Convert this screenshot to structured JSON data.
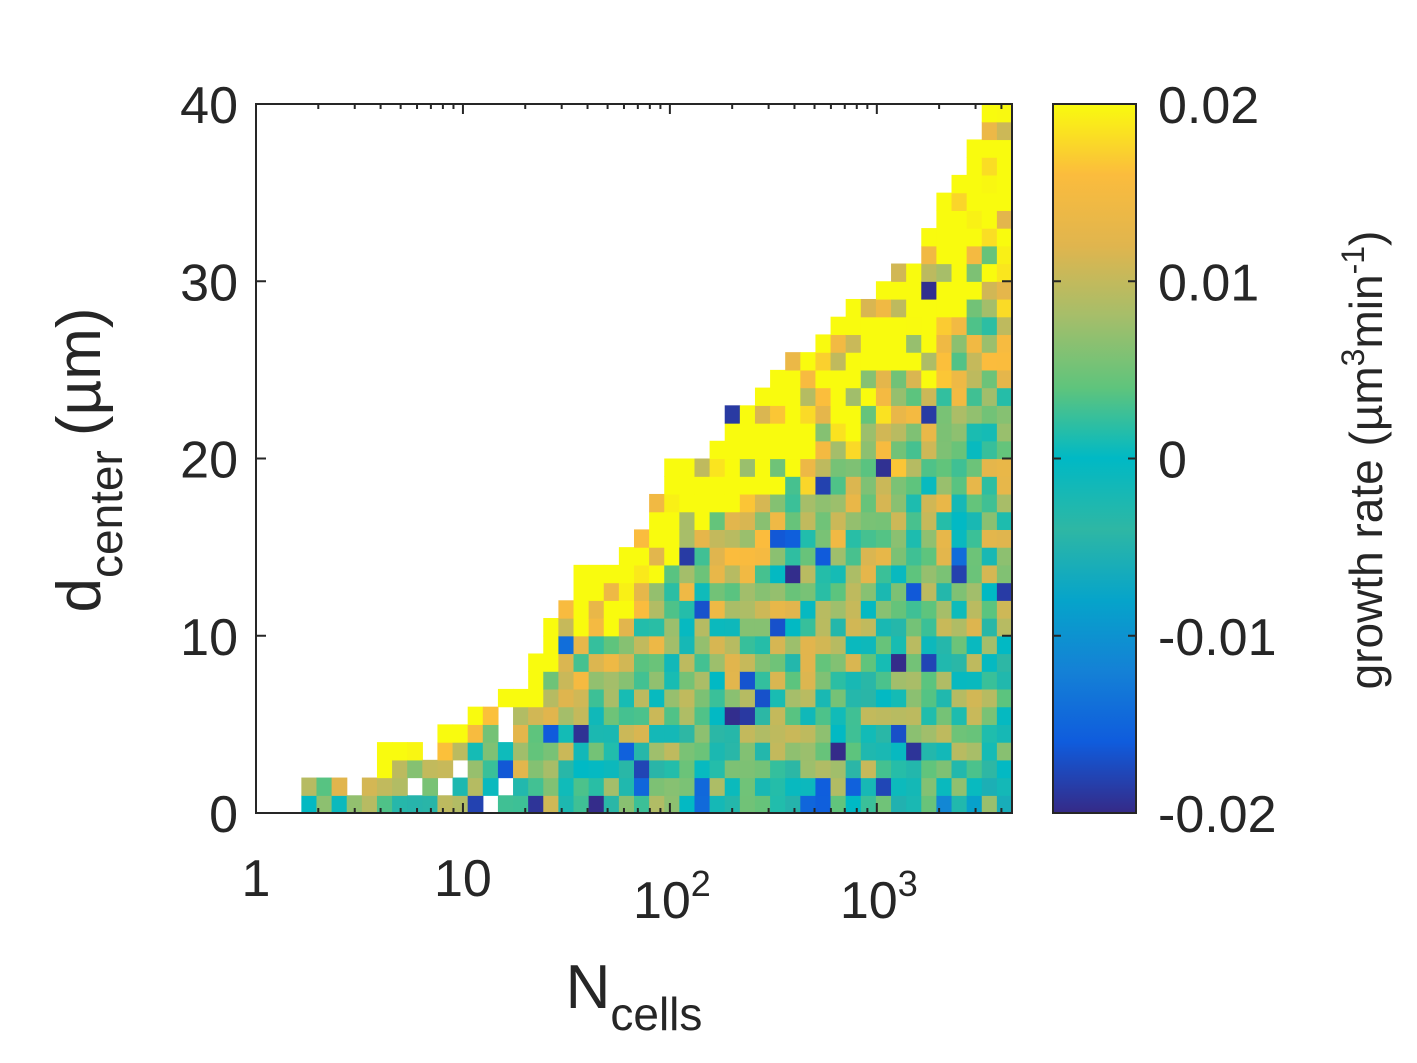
{
  "chart_data": {
    "type": "heatmap",
    "title": "",
    "xlabel": {
      "main": "N",
      "sub": "cells"
    },
    "ylabel": {
      "main": "d",
      "sub": "center",
      "unit": "(µm)"
    },
    "x_scale": "log",
    "xlim": [
      1,
      4500
    ],
    "ylim": [
      0,
      40
    ],
    "x_ticks": [
      {
        "value": 1,
        "base": "1",
        "exp": ""
      },
      {
        "value": 10,
        "base": "10",
        "exp": ""
      },
      {
        "value": 100,
        "base": "10",
        "exp": "2"
      },
      {
        "value": 1000,
        "base": "10",
        "exp": "3"
      }
    ],
    "y_ticks": [
      {
        "value": 0,
        "label": "0"
      },
      {
        "value": 10,
        "label": "10"
      },
      {
        "value": 20,
        "label": "20"
      },
      {
        "value": 30,
        "label": "30"
      },
      {
        "value": 40,
        "label": "40"
      }
    ],
    "colorbar": {
      "label": "growth rate (µm",
      "label_sup1": "3",
      "label_mid": "min",
      "label_sup2": "-1",
      "label_end": ")",
      "clim": [
        -0.02,
        0.02
      ],
      "ticks": [
        {
          "value": 0.02,
          "label": "0.02"
        },
        {
          "value": 0.01,
          "label": "0.01"
        },
        {
          "value": 0,
          "label": "0"
        },
        {
          "value": -0.01,
          "label": "-0.01"
        },
        {
          "value": -0.02,
          "label": "-0.02"
        }
      ],
      "colormap": "parula"
    },
    "grid": false,
    "bins": {
      "n_log_x_bins": 50,
      "n_y_bins": 40,
      "bin_height_um": 1
    },
    "envelope_max_d_um": [
      [
        1.7,
        3
      ],
      [
        3,
        3
      ],
      [
        7,
        3.5
      ],
      [
        10,
        5
      ],
      [
        20,
        7
      ],
      [
        35,
        13
      ],
      [
        60,
        14
      ],
      [
        100,
        19
      ],
      [
        150,
        20
      ],
      [
        200,
        22
      ],
      [
        300,
        24
      ],
      [
        500,
        26
      ],
      [
        700,
        28
      ],
      [
        1000,
        29
      ],
      [
        1600,
        31
      ],
      [
        2500,
        36
      ],
      [
        3500,
        40
      ],
      [
        4500,
        40
      ]
    ],
    "trend_growth_rate": {
      "outer_edge": 0.018,
      "interior_at_large_N": 0.003,
      "bottom_rows_at_large_N": -0.008
    }
  }
}
